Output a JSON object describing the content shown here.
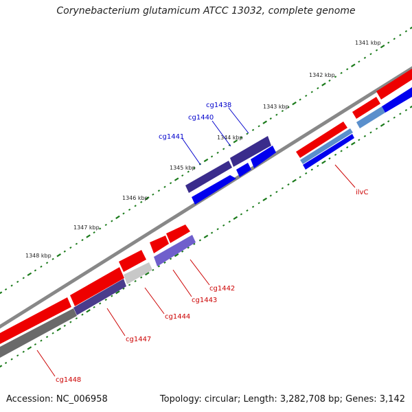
{
  "title": "Corynebacterium glutamicum ATCC 13032, complete genome",
  "accession": "Accession: NC_006958",
  "summary": "Topology: circular; Length: 3,282,708 bp; Genes: 3,142",
  "ruler": {
    "labels": [
      "1341 kbp",
      "1342 kbp",
      "1343 kbp",
      "1344 kbp",
      "1345 kbp",
      "1346 kbp",
      "1347 kbp",
      "1348 kbp"
    ]
  },
  "genes": [
    {
      "name": "ilvC",
      "color": "#cc0000"
    },
    {
      "name": "cg1438",
      "color": "#0000cc"
    },
    {
      "name": "cg1440",
      "color": "#0000cc"
    },
    {
      "name": "cg1441",
      "color": "#0000cc"
    },
    {
      "name": "cg1442",
      "color": "#cc0000"
    },
    {
      "name": "cg1443",
      "color": "#cc0000"
    },
    {
      "name": "cg1444",
      "color": "#cc0000"
    },
    {
      "name": "cg1447",
      "color": "#cc0000"
    },
    {
      "name": "cg1448",
      "color": "#cc0000"
    }
  ],
  "colors": {
    "forward_cds": "#ee0000",
    "reverse_cds": "#0000ee",
    "backbone": "#888888",
    "ruler_ticks": "#1a7a1a"
  }
}
